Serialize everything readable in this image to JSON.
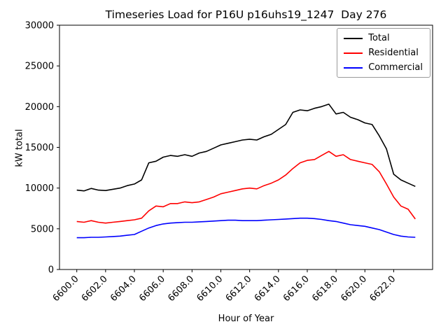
{
  "chart_data": {
    "type": "line",
    "title": "Timeseries Load for P16U p16uhs19_1247  Day 276",
    "xlabel": "Hour of Year",
    "ylabel": "kW total",
    "xlim": [
      6598.8,
      6624.7
    ],
    "ylim": [
      0,
      30000
    ],
    "grid": false,
    "legend_position": "upper right",
    "xticks": [
      6600,
      6602,
      6604,
      6606,
      6608,
      6610,
      6612,
      6614,
      6616,
      6618,
      6620,
      6622
    ],
    "xtick_labels": [
      "6600.0",
      "6602.0",
      "6604.0",
      "6606.0",
      "6608.0",
      "6610.0",
      "6612.0",
      "6614.0",
      "6616.0",
      "6618.0",
      "6620.0",
      "6622.0"
    ],
    "yticks": [
      0,
      5000,
      10000,
      15000,
      20000,
      25000,
      30000
    ],
    "ytick_labels": [
      "0",
      "5000",
      "10000",
      "15000",
      "20000",
      "25000",
      "30000"
    ],
    "x": [
      6600.0,
      6600.5,
      6601.0,
      6601.5,
      6602.0,
      6602.5,
      6603.0,
      6603.5,
      6604.0,
      6604.5,
      6605.0,
      6605.5,
      6606.0,
      6606.5,
      6607.0,
      6607.5,
      6608.0,
      6608.5,
      6609.0,
      6609.5,
      6610.0,
      6610.5,
      6611.0,
      6611.5,
      6612.0,
      6612.5,
      6613.0,
      6613.5,
      6614.0,
      6614.5,
      6615.0,
      6615.5,
      6616.0,
      6616.5,
      6617.0,
      6617.5,
      6618.0,
      6618.5,
      6619.0,
      6619.5,
      6620.0,
      6620.5,
      6621.0,
      6621.5,
      6622.0,
      6622.5,
      6623.0,
      6623.5
    ],
    "series": [
      {
        "name": "Total",
        "color": "#000000",
        "values": [
          9750,
          9650,
          9950,
          9750,
          9700,
          9850,
          10000,
          10300,
          10500,
          11000,
          13100,
          13300,
          13800,
          14000,
          13900,
          14100,
          13900,
          14300,
          14500,
          14900,
          15300,
          15500,
          15700,
          15900,
          16000,
          15900,
          16300,
          16600,
          17200,
          17800,
          19300,
          19600,
          19500,
          19800,
          20000,
          20300,
          19100,
          19300,
          18700,
          18400,
          18000,
          17800,
          16400,
          14800,
          11700,
          11000,
          10600,
          10200
        ]
      },
      {
        "name": "Residential",
        "color": "#ff0000",
        "values": [
          5900,
          5800,
          6000,
          5800,
          5700,
          5800,
          5900,
          6000,
          6100,
          6300,
          7200,
          7800,
          7700,
          8100,
          8100,
          8300,
          8200,
          8300,
          8600,
          8900,
          9300,
          9500,
          9700,
          9900,
          10000,
          9900,
          10300,
          10600,
          11000,
          11600,
          12400,
          13100,
          13400,
          13500,
          14000,
          14500,
          13900,
          14100,
          13500,
          13300,
          13100,
          12900,
          12000,
          10500,
          8900,
          7800,
          7400,
          6200
        ]
      },
      {
        "name": "Commercial",
        "color": "#0000ff",
        "values": [
          3900,
          3900,
          3950,
          3950,
          4000,
          4050,
          4100,
          4200,
          4300,
          4700,
          5100,
          5400,
          5600,
          5700,
          5750,
          5800,
          5800,
          5850,
          5900,
          5950,
          6000,
          6050,
          6050,
          6000,
          6000,
          6000,
          6050,
          6100,
          6150,
          6200,
          6250,
          6300,
          6300,
          6250,
          6150,
          6000,
          5900,
          5700,
          5500,
          5400,
          5300,
          5100,
          4900,
          4600,
          4300,
          4100,
          4000,
          3950
        ]
      }
    ]
  }
}
